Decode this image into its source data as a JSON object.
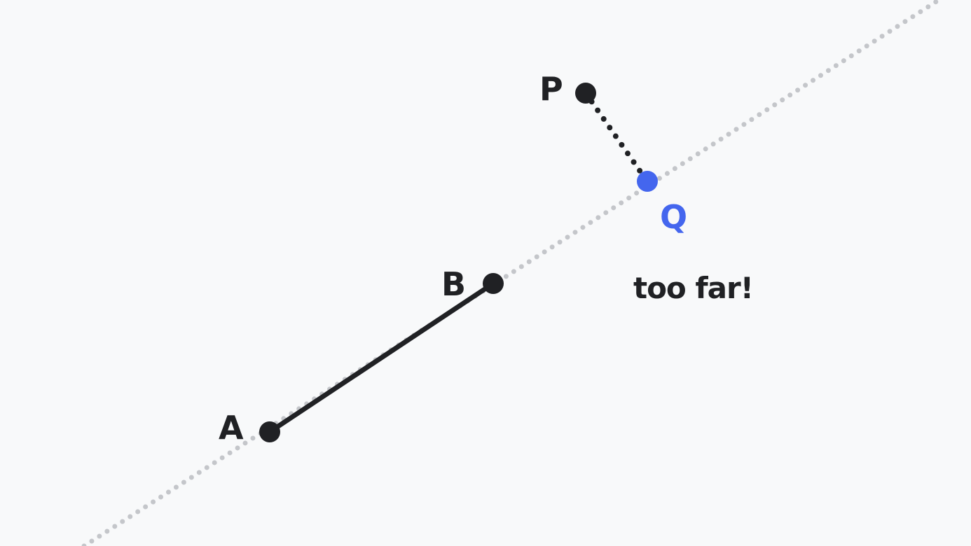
{
  "points": {
    "A": {
      "label": "A"
    },
    "B": {
      "label": "B"
    },
    "P": {
      "label": "P"
    },
    "Q": {
      "label": "Q"
    }
  },
  "annotation": "too far!",
  "colors": {
    "background": "#f8f9fa",
    "ink": "#202124",
    "accent": "#4466ee",
    "guide": "#c4c6ca"
  }
}
